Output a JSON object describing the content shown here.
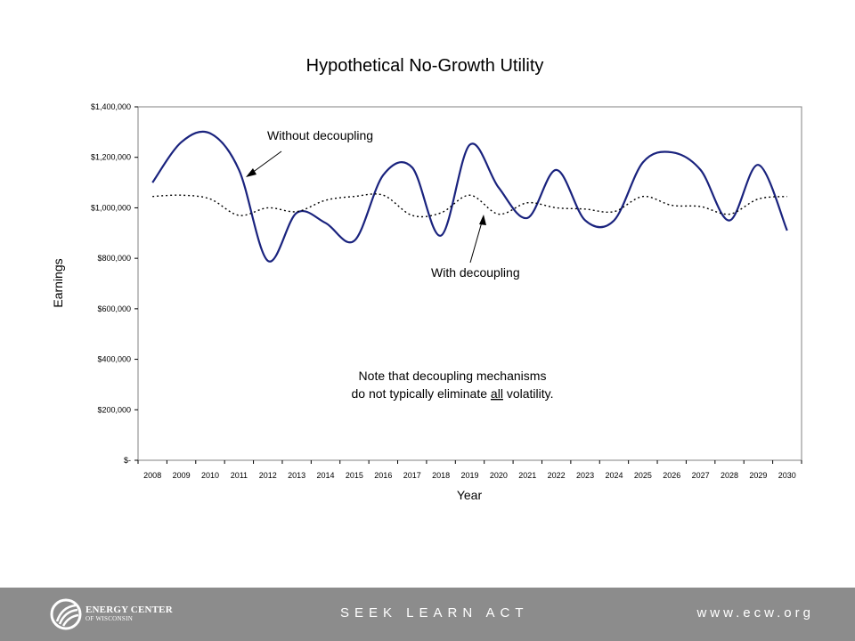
{
  "chart_data": {
    "type": "line",
    "title": "Hypothetical No-Growth Utility",
    "xlabel": "Year",
    "ylabel": "Earnings",
    "ylim": [
      0,
      1400000
    ],
    "yticks": [
      0,
      200000,
      400000,
      600000,
      800000,
      1000000,
      1200000,
      1400000
    ],
    "ytick_labels": [
      "$-",
      "$200,000",
      "$400,000",
      "$600,000",
      "$800,000",
      "$1,000,000",
      "$1,200,000",
      "$1,400,000"
    ],
    "categories": [
      "2008",
      "2009",
      "2010",
      "2011",
      "2012",
      "2013",
      "2014",
      "2015",
      "2016",
      "2017",
      "2018",
      "2019",
      "2020",
      "2021",
      "2022",
      "2023",
      "2024",
      "2025",
      "2026",
      "2027",
      "2028",
      "2029",
      "2030"
    ],
    "grid": false,
    "series": [
      {
        "name": "Without decoupling",
        "style": "solid",
        "color": "#1a237e",
        "values": [
          1100000,
          1260000,
          1295000,
          1150000,
          790000,
          980000,
          940000,
          870000,
          1130000,
          1160000,
          890000,
          1250000,
          1080000,
          960000,
          1150000,
          950000,
          950000,
          1180000,
          1220000,
          1150000,
          950000,
          1170000,
          910000
        ]
      },
      {
        "name": "With decoupling",
        "style": "dotted",
        "color": "#000000",
        "values": [
          1045000,
          1050000,
          1035000,
          970000,
          1000000,
          985000,
          1030000,
          1045000,
          1050000,
          970000,
          980000,
          1050000,
          975000,
          1020000,
          1000000,
          995000,
          985000,
          1045000,
          1010000,
          1005000,
          975000,
          1035000,
          1045000
        ]
      }
    ],
    "annotations": [
      {
        "text": "Without decoupling",
        "target_index": 3.3,
        "target_series": 0
      },
      {
        "text": "With decoupling",
        "target_index": 11.6,
        "target_series": 1
      }
    ],
    "note": {
      "line1": "Note that decoupling mechanisms",
      "line2_pre": "do not typically eliminate ",
      "line2_emph": "all",
      "line2_post": " volatility."
    }
  },
  "footer": {
    "org_name_line1": "ENERGY CENTER",
    "org_name_line2": "OF WISCONSIN",
    "tagline": "SEEK LEARN ACT",
    "website": "www.ecw.org",
    "background_color": "#8c8c8c"
  }
}
